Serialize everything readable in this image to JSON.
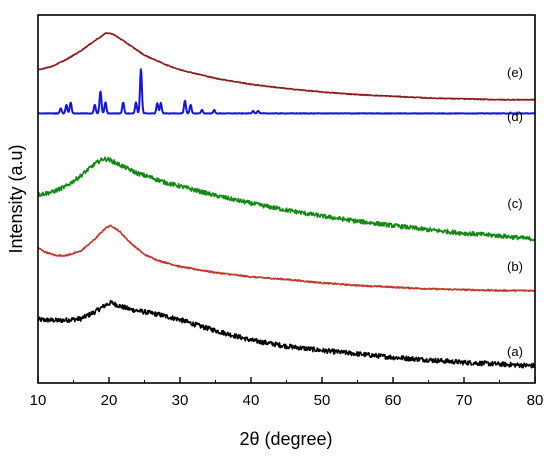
{
  "chart_data": {
    "type": "line",
    "xlabel": "2θ (degree)",
    "ylabel": "Intensity (a.u)",
    "xlim": [
      10,
      80
    ],
    "x_ticks": [
      "10",
      "20",
      "30",
      "40",
      "50",
      "60",
      "70",
      "80"
    ],
    "y_ticks_shown": false,
    "grid": false,
    "series": [
      {
        "name": "(a)",
        "color": "#000000",
        "noise": 0.28,
        "points": [
          [
            10,
            7.4
          ],
          [
            13,
            7.3
          ],
          [
            16,
            7.5
          ],
          [
            18,
            8.3
          ],
          [
            19.5,
            9.1
          ],
          [
            20.3,
            9.4
          ],
          [
            21.5,
            9.0
          ],
          [
            23,
            8.6
          ],
          [
            25,
            8.3
          ],
          [
            27,
            8.0
          ],
          [
            30,
            7.4
          ],
          [
            33,
            6.6
          ],
          [
            36,
            5.9
          ],
          [
            40,
            5.0
          ],
          [
            45,
            4.3
          ],
          [
            50,
            3.8
          ],
          [
            55,
            3.4
          ],
          [
            60,
            3.0
          ],
          [
            65,
            2.7
          ],
          [
            70,
            2.4
          ],
          [
            75,
            2.2
          ],
          [
            80,
            2.0
          ]
        ]
      },
      {
        "name": "(b)",
        "color": "#c0392b",
        "noise": 0.08,
        "points": [
          [
            10,
            15.8
          ],
          [
            11,
            15.3
          ],
          [
            12.5,
            14.9
          ],
          [
            14,
            14.9
          ],
          [
            16,
            15.4
          ],
          [
            18,
            16.8
          ],
          [
            19.5,
            18.1
          ],
          [
            20.3,
            18.4
          ],
          [
            21.5,
            17.7
          ],
          [
            23,
            16.4
          ],
          [
            25,
            15.0
          ],
          [
            27,
            14.3
          ],
          [
            30,
            13.6
          ],
          [
            35,
            12.9
          ],
          [
            40,
            12.4
          ],
          [
            45,
            12.1
          ],
          [
            50,
            11.7
          ],
          [
            55,
            11.4
          ],
          [
            60,
            11.2
          ],
          [
            65,
            11.0
          ],
          [
            70,
            10.9
          ],
          [
            75,
            10.8
          ],
          [
            80,
            10.8
          ]
        ]
      },
      {
        "name": "(c)",
        "color": "#138a13",
        "noise": 0.25,
        "points": [
          [
            10,
            22.0
          ],
          [
            12,
            22.3
          ],
          [
            14,
            23.0
          ],
          [
            16,
            24.2
          ],
          [
            18,
            25.6
          ],
          [
            19.2,
            26.2
          ],
          [
            20,
            26.1
          ],
          [
            22,
            25.3
          ],
          [
            24,
            24.5
          ],
          [
            26,
            24.0
          ],
          [
            28,
            23.4
          ],
          [
            30,
            23.0
          ],
          [
            35,
            21.9
          ],
          [
            40,
            21.0
          ],
          [
            45,
            20.2
          ],
          [
            50,
            19.5
          ],
          [
            55,
            18.9
          ],
          [
            60,
            18.4
          ],
          [
            65,
            17.9
          ],
          [
            70,
            17.5
          ],
          [
            75,
            17.2
          ],
          [
            80,
            16.8
          ]
        ]
      },
      {
        "name": "(d)",
        "color": "#1515e0",
        "noise": 0.03,
        "baseline": 31.5,
        "peaks": [
          [
            13.2,
            0.6
          ],
          [
            14.0,
            1.0
          ],
          [
            14.6,
            1.3
          ],
          [
            18.0,
            1.0
          ],
          [
            18.8,
            2.6
          ],
          [
            19.5,
            1.3
          ],
          [
            22.0,
            1.3
          ],
          [
            23.8,
            1.3
          ],
          [
            24.5,
            5.2
          ],
          [
            26.8,
            1.2
          ],
          [
            27.3,
            1.2
          ],
          [
            30.7,
            1.5
          ],
          [
            31.5,
            1.0
          ],
          [
            33.1,
            0.4
          ],
          [
            34.8,
            0.4
          ],
          [
            40.3,
            0.3
          ],
          [
            41.0,
            0.3
          ]
        ]
      },
      {
        "name": "(e)",
        "color": "#8b1a1a",
        "noise": 0.05,
        "points": [
          [
            10,
            36.6
          ],
          [
            12,
            37.0
          ],
          [
            14,
            37.8
          ],
          [
            16,
            38.8
          ],
          [
            18,
            40.0
          ],
          [
            19.6,
            40.9
          ],
          [
            20.5,
            40.8
          ],
          [
            22,
            40.0
          ],
          [
            25,
            38.3
          ],
          [
            28,
            37.2
          ],
          [
            30,
            36.6
          ],
          [
            35,
            35.6
          ],
          [
            40,
            34.9
          ],
          [
            45,
            34.4
          ],
          [
            50,
            34.0
          ],
          [
            55,
            33.7
          ],
          [
            60,
            33.5
          ],
          [
            65,
            33.3
          ],
          [
            70,
            33.2
          ],
          [
            75,
            33.1
          ],
          [
            80,
            33.1
          ]
        ]
      }
    ],
    "annotations": [
      "(e)",
      "(d)",
      "(c)",
      "(b)",
      "(a)"
    ]
  }
}
